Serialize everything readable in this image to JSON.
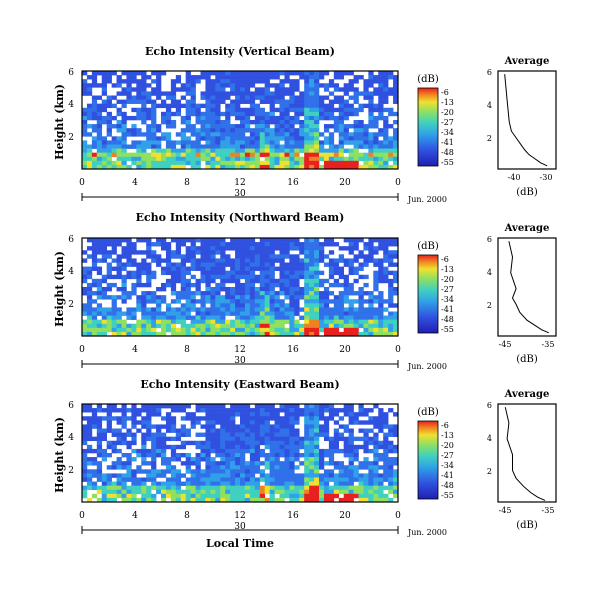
{
  "figure": {
    "xlabel_bottom": "Local Time",
    "date_label": "Jun. 2000",
    "colorbar_unit": "(dB)",
    "colorbar_ticks": [
      "-6",
      "-13",
      "-20",
      "-27",
      "-34",
      "-41",
      "-48",
      "-55"
    ],
    "profile_title": "Average",
    "profile_xlabel": "(dB)",
    "colors": {
      "high": "#e82020",
      "mid_high": "#f0e030",
      "mid": "#40d0c0",
      "low": "#3050e0",
      "background": "#ffffff"
    }
  },
  "chart_data": [
    {
      "type": "heatmap",
      "title": "Echo Intensity (Vertical Beam)",
      "ylabel": "Height (km)",
      "yticks": [
        "6",
        "4",
        "2"
      ],
      "xticks": [
        "0",
        "4",
        "8",
        "12",
        "16",
        "20",
        "0"
      ],
      "xday_ticks": [
        "30"
      ],
      "colorscale": {
        "min": -55,
        "max": -6
      },
      "profile": {
        "title": "Average",
        "xlabel": "(dB)",
        "xticks": [
          "-40",
          "-30"
        ],
        "yticks": [
          "6",
          "4",
          "2"
        ],
        "x": [
          -49,
          -48,
          -47,
          -46,
          -44,
          -42,
          -40,
          -38,
          -36,
          -33,
          -30
        ],
        "y": [
          6.0,
          4.5,
          3.0,
          2.4,
          2.0,
          1.6,
          1.2,
          0.9,
          0.7,
          0.4,
          0.2
        ]
      }
    },
    {
      "type": "heatmap",
      "title": "Echo Intensity (Northward Beam)",
      "ylabel": "Height (km)",
      "yticks": [
        "6",
        "4",
        "2"
      ],
      "xticks": [
        "0",
        "4",
        "8",
        "12",
        "16",
        "20",
        "0"
      ],
      "xday_ticks": [
        "30"
      ],
      "colorscale": {
        "min": -55,
        "max": -6
      },
      "profile": {
        "title": "Average",
        "xlabel": "(dB)",
        "xticks": [
          "-45",
          "-35"
        ],
        "yticks": [
          "6",
          "4",
          "2"
        ],
        "x": [
          -45,
          -44,
          -44.5,
          -43,
          -44,
          -43,
          -42,
          -40,
          -38,
          -36,
          -34
        ],
        "y": [
          6.0,
          5.0,
          4.0,
          3.0,
          2.4,
          2.0,
          1.5,
          1.0,
          0.7,
          0.4,
          0.2
        ]
      }
    },
    {
      "type": "heatmap",
      "title": "Echo Intensity (Eastward Beam)",
      "ylabel": "Height (km)",
      "yticks": [
        "6",
        "4",
        "2"
      ],
      "xticks": [
        "0",
        "4",
        "8",
        "12",
        "16",
        "20",
        "0"
      ],
      "xday_ticks": [
        "30"
      ],
      "colorscale": {
        "min": -55,
        "max": -6
      },
      "profile": {
        "title": "Average",
        "xlabel": "(dB)",
        "xticks": [
          "-45",
          "-35"
        ],
        "yticks": [
          "6",
          "4",
          "2"
        ],
        "x": [
          -46,
          -45,
          -45.5,
          -44,
          -44,
          -43,
          -41,
          -39,
          -37,
          -35
        ],
        "y": [
          6.0,
          5.0,
          4.0,
          3.0,
          2.0,
          1.5,
          1.0,
          0.6,
          0.3,
          0.1
        ]
      }
    }
  ]
}
